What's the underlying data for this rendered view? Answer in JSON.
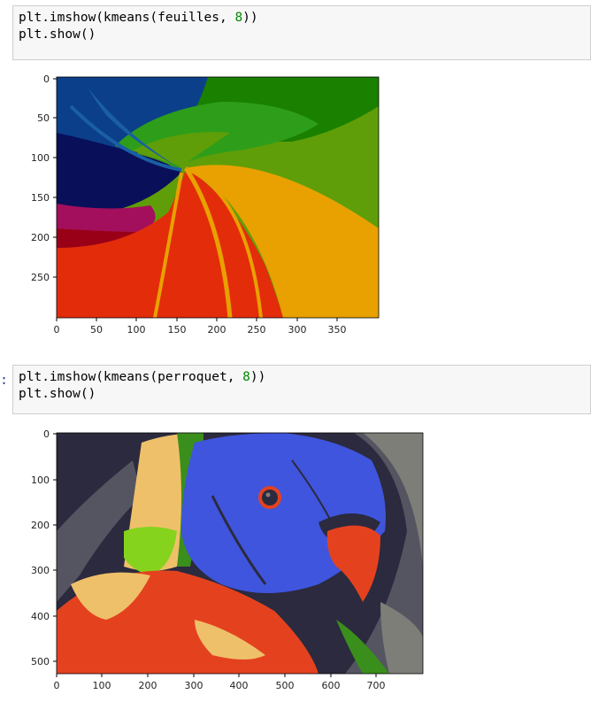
{
  "cells": [
    {
      "prompt": "",
      "line1_pre": "plt.imshow(kmeans(feuilles, ",
      "line1_num": "8",
      "line1_post": "))",
      "line2": "plt.show()"
    },
    {
      "prompt": ":",
      "line1_pre": "plt.imshow(kmeans(perroquet, ",
      "line1_num": "8",
      "line1_post": "))",
      "line2": "plt.show()"
    }
  ],
  "plot1": {
    "yticks": [
      "0",
      "50",
      "100",
      "150",
      "200",
      "250"
    ],
    "xticks": [
      "0",
      "50",
      "100",
      "150",
      "200",
      "250",
      "300",
      "350"
    ],
    "palette": [
      "#0b3f8a",
      "#1a5fa3",
      "#2e9e1a",
      "#5f9e08",
      "#1a8000",
      "#e8a100",
      "#e32c0a",
      "#990018"
    ]
  },
  "plot2": {
    "yticks": [
      "0",
      "100",
      "200",
      "300",
      "400",
      "500"
    ],
    "xticks": [
      "0",
      "100",
      "200",
      "300",
      "400",
      "500",
      "600",
      "700"
    ],
    "palette": [
      "#2b2a3e",
      "#555461",
      "#7d7e78",
      "#3f55dd",
      "#efc06a",
      "#e4421f",
      "#85d31c",
      "#3a8f1c"
    ]
  }
}
